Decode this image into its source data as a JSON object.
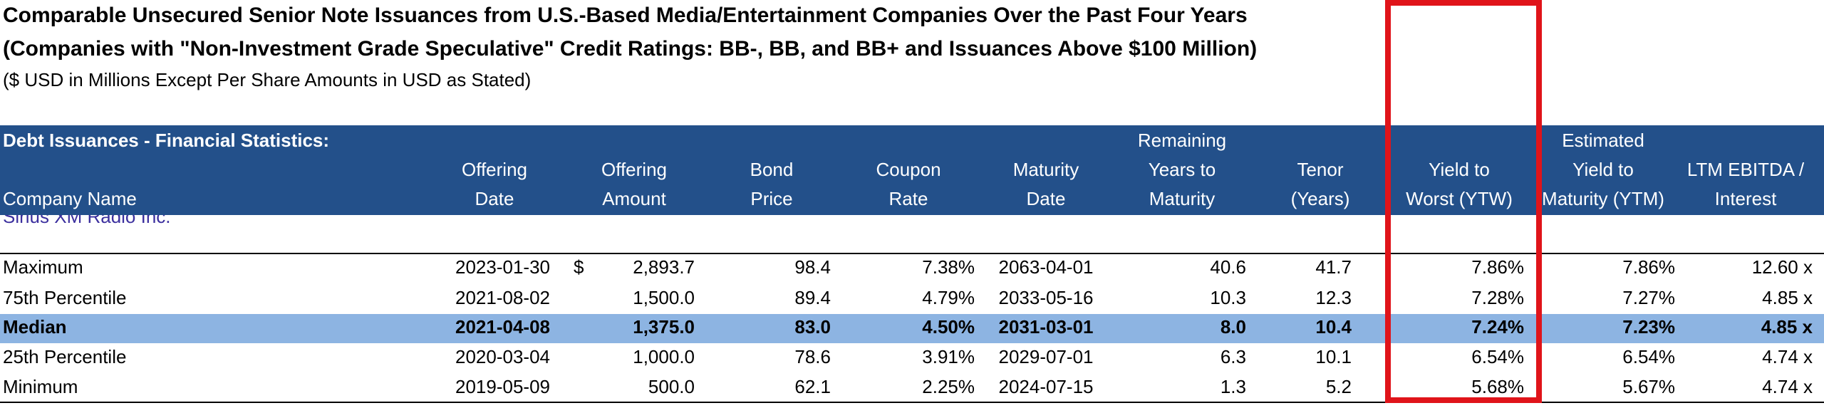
{
  "header": {
    "title_lines": [
      "Comparable Unsecured Senior Note Issuances from U.S.-Based Media/Entertainment Companies Over the Past Four Years",
      "(Companies with \"Non-Investment Grade Speculative\" Credit Ratings: BB-, BB, and BB+ and Issuances Above $100 Million)"
    ],
    "subtitle": "($ USD in Millions Except Per Share Amounts in USD as Stated)"
  },
  "table": {
    "section_label": "Debt Issuances - Financial Statistics:",
    "columns": [
      [
        "Company Name"
      ],
      [
        "Offering",
        "Date"
      ],
      [
        "Offering",
        "Amount"
      ],
      [
        "Bond",
        "Price"
      ],
      [
        "Coupon",
        "Rate"
      ],
      [
        "Maturity",
        "Date"
      ],
      [
        "Remaining",
        "Years to",
        "Maturity"
      ],
      [
        "Tenor",
        "(Years)"
      ],
      [
        "Yield to",
        "Worst (YTW)"
      ],
      [
        "Estimated",
        "Yield to",
        "Maturity (YTM)"
      ],
      [
        "LTM EBITDA /",
        "Interest"
      ]
    ],
    "clipped_row": "Sirius XM Radio Inc.",
    "rows": [
      {
        "cells": [
          "Maximum",
          "2023-01-30",
          "2,893.7",
          "98.4",
          "7.38%",
          "2063-04-01",
          "40.6",
          "41.7",
          "7.86%",
          "7.86%",
          "12.60 x"
        ],
        "currency": "$"
      },
      {
        "cells": [
          "75th Percentile",
          "2021-08-02",
          "1,500.0",
          "89.4",
          "4.79%",
          "2033-05-16",
          "10.3",
          "12.3",
          "7.28%",
          "7.27%",
          "4.85 x"
        ]
      },
      {
        "cells": [
          "Median",
          "2021-04-08",
          "1,375.0",
          "83.0",
          "4.50%",
          "2031-03-01",
          "8.0",
          "10.4",
          "7.24%",
          "7.23%",
          "4.85 x"
        ],
        "highlight": true
      },
      {
        "cells": [
          "25th Percentile",
          "2020-03-04",
          "1,000.0",
          "78.6",
          "3.91%",
          "2029-07-01",
          "6.3",
          "10.1",
          "6.54%",
          "6.54%",
          "4.74 x"
        ]
      },
      {
        "cells": [
          "Minimum",
          "2019-05-09",
          "500.0",
          "62.1",
          "2.25%",
          "2024-07-15",
          "1.3",
          "5.2",
          "5.68%",
          "5.67%",
          "4.74 x"
        ]
      }
    ]
  }
}
